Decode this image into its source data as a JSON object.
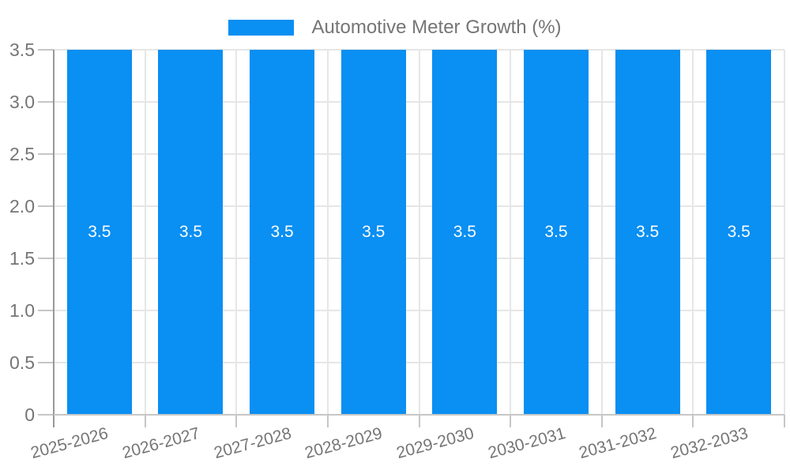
{
  "legend": {
    "label": "Automotive Meter Growth (%)"
  },
  "chart_data": {
    "type": "bar",
    "title": "",
    "legend_position": "top",
    "grid": true,
    "categories": [
      "2025-2026",
      "2026-2027",
      "2027-2028",
      "2028-2029",
      "2029-2030",
      "2030-2031",
      "2031-2032",
      "2032-2033"
    ],
    "series": [
      {
        "name": "Automotive Meter Growth (%)",
        "values": [
          3.5,
          3.5,
          3.5,
          3.5,
          3.5,
          3.5,
          3.5,
          3.5
        ]
      }
    ],
    "value_labels": [
      "3.5",
      "3.5",
      "3.5",
      "3.5",
      "3.5",
      "3.5",
      "3.5",
      "3.5"
    ],
    "xlabel": "",
    "ylabel": "",
    "ylim": [
      0,
      3.5
    ],
    "yticks": [
      0,
      0.5,
      1,
      1.5,
      2,
      2.5,
      3,
      3.5
    ],
    "ytick_labels": [
      "0",
      "0.5",
      "1.0",
      "1.5",
      "2.0",
      "2.5",
      "3.0",
      "3.5"
    ],
    "colors": {
      "bar": "#0a8ff2",
      "text": "#757575",
      "value_label": "#ffffff",
      "grid": "#e6e6e6",
      "axis": "#999999",
      "minor_axis": "#c6c6c6"
    }
  }
}
